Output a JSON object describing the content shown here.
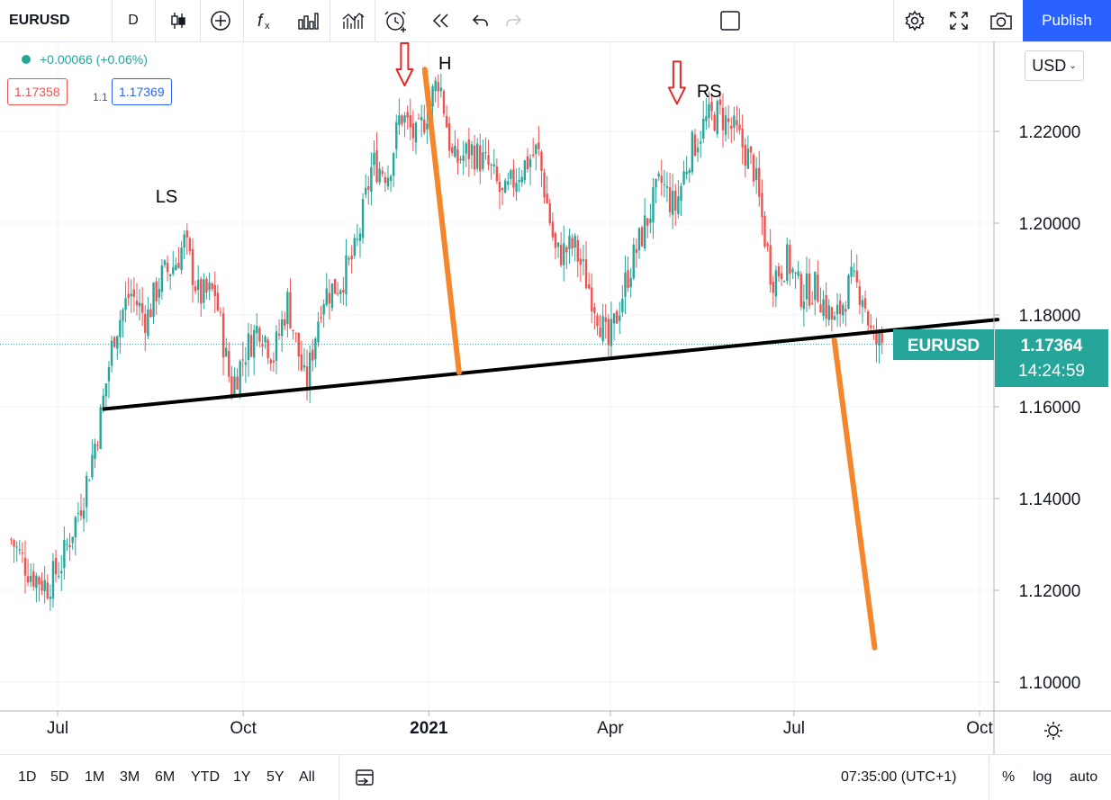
{
  "toolbar": {
    "symbol": "EURUSD",
    "interval": "D",
    "publish_label": "Publish"
  },
  "legend": {
    "change": "+0.00066 (+0.06%)",
    "bid": "1.17358",
    "spread": "1.1",
    "ask": "1.17369"
  },
  "currency_selector": "USD",
  "price_label": {
    "symbol": "EURUSD",
    "price": "1.17364",
    "countdown": "14:24:59"
  },
  "annotations": {
    "left_shoulder": "LS",
    "head": "H",
    "right_shoulder": "RS"
  },
  "bottombar": {
    "ranges": [
      "1D",
      "5D",
      "1M",
      "3M",
      "6M",
      "YTD",
      "1Y",
      "5Y",
      "All"
    ],
    "time": "07:35:00 (UTC+1)",
    "percent": "%",
    "log": "log",
    "auto": "auto"
  },
  "colors": {
    "up": "#26a69a",
    "down": "#ef5350",
    "accent": "#2962ff",
    "projection": "#f5862b",
    "neckline": "#000000"
  },
  "chart_data": {
    "type": "candlestick",
    "symbol": "EURUSD",
    "interval": "D",
    "ylim": [
      1.095,
      1.238
    ],
    "y_ticks": [
      "1.22000",
      "1.20000",
      "1.18000",
      "1.16000",
      "1.14000",
      "1.12000",
      "1.10000"
    ],
    "x_ticks": [
      "Jul",
      "Oct",
      "2021",
      "Apr",
      "Jul",
      "Oct"
    ],
    "last_price": 1.17364,
    "close_path": [
      [
        "2020-06-08",
        1.131
      ],
      [
        "2020-06-17",
        1.124
      ],
      [
        "2020-06-26",
        1.121
      ],
      [
        "2020-07-03",
        1.126
      ],
      [
        "2020-07-14",
        1.141
      ],
      [
        "2020-07-22",
        1.157
      ],
      [
        "2020-07-29",
        1.176
      ],
      [
        "2020-08-06",
        1.185
      ],
      [
        "2020-08-14",
        1.179
      ],
      [
        "2020-08-21",
        1.188
      ],
      [
        "2020-08-28",
        1.191
      ],
      [
        "2020-09-02",
        1.196
      ],
      [
        "2020-09-09",
        1.184
      ],
      [
        "2020-09-17",
        1.185
      ],
      [
        "2020-09-25",
        1.164
      ],
      [
        "2020-10-02",
        1.172
      ],
      [
        "2020-10-09",
        1.178
      ],
      [
        "2020-10-16",
        1.171
      ],
      [
        "2020-10-23",
        1.183
      ],
      [
        "2020-11-01",
        1.164
      ],
      [
        "2020-11-09",
        1.184
      ],
      [
        "2020-11-18",
        1.187
      ],
      [
        "2020-11-26",
        1.194
      ],
      [
        "2020-12-04",
        1.213
      ],
      [
        "2020-12-12",
        1.211
      ],
      [
        "2020-12-18",
        1.224
      ],
      [
        "2020-12-26",
        1.218
      ],
      [
        "2021-01-06",
        1.232
      ],
      [
        "2021-01-13",
        1.213
      ],
      [
        "2021-01-22",
        1.216
      ],
      [
        "2021-01-31",
        1.212
      ],
      [
        "2021-02-07",
        1.205
      ],
      [
        "2021-02-14",
        1.211
      ],
      [
        "2021-02-24",
        1.216
      ],
      [
        "2021-03-05",
        1.193
      ],
      [
        "2021-03-14",
        1.195
      ],
      [
        "2021-03-24",
        1.183
      ],
      [
        "2021-03-31",
        1.173
      ],
      [
        "2021-04-09",
        1.188
      ],
      [
        "2021-04-17",
        1.198
      ],
      [
        "2021-04-26",
        1.209
      ],
      [
        "2021-05-03",
        1.203
      ],
      [
        "2021-05-10",
        1.215
      ],
      [
        "2021-05-18",
        1.222
      ],
      [
        "2021-05-25",
        1.224
      ],
      [
        "2021-06-03",
        1.219
      ],
      [
        "2021-06-11",
        1.212
      ],
      [
        "2021-06-20",
        1.188
      ],
      [
        "2021-06-28",
        1.192
      ],
      [
        "2021-07-04",
        1.185
      ],
      [
        "2021-07-12",
        1.186
      ],
      [
        "2021-07-21",
        1.178
      ],
      [
        "2021-07-29",
        1.187
      ],
      [
        "2021-08-04",
        1.185
      ],
      [
        "2021-08-09",
        1.174
      ],
      [
        "2021-08-14",
        1.174
      ]
    ],
    "neckline": [
      [
        "2020-07-24",
        1.1595
      ],
      [
        "2021-10-10",
        1.179
      ]
    ],
    "projections": [
      {
        "from": [
          "2020-12-30",
          1.2335
        ],
        "to": [
          "2021-01-16",
          1.1675
        ]
      },
      {
        "from": [
          "2021-07-21",
          1.1745
        ],
        "to": [
          "2021-08-10",
          1.1075
        ]
      }
    ],
    "markers": [
      {
        "text": "LS",
        "date": "2020-08-24",
        "price": 1.2045
      },
      {
        "text": "H",
        "date": "2021-01-09",
        "price": 1.2335
      },
      {
        "text": "RS",
        "date": "2021-05-20",
        "price": 1.2275
      }
    ],
    "arrows": [
      {
        "date": "2020-12-20",
        "price": 1.23
      },
      {
        "date": "2021-05-04",
        "price": 1.226
      }
    ]
  }
}
